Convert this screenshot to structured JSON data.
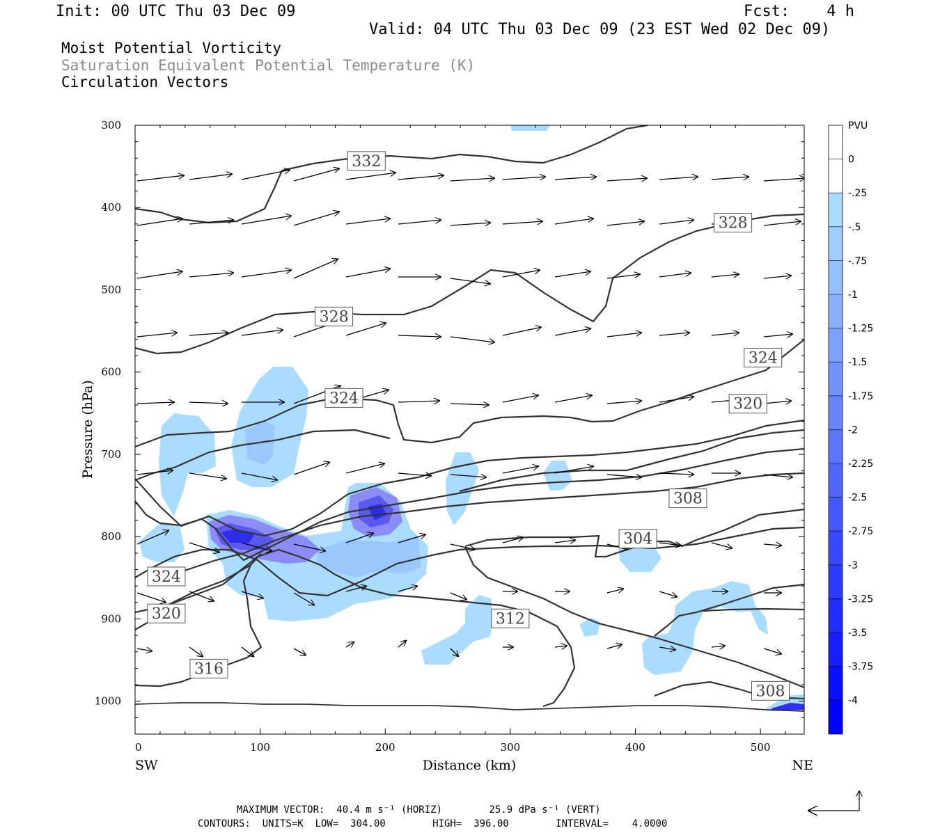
{
  "header": {
    "init": "Init: 00 UTC Thu 03 Dec 09",
    "fcst": "Fcst:    4 h",
    "valid": "Valid: 04 UTC Thu 03 Dec 09 (23 EST Wed 02 Dec 09)",
    "fields": [
      "Moist Potential Vorticity",
      "Saturation Equivalent Potential Temperature (K)",
      "Circulation Vectors"
    ]
  },
  "footer": {
    "line1": "MAXIMUM VECTOR:  40.4 m s⁻¹ (HORIZ)        25.9 dPa s⁻¹ (VERT)",
    "line2": "CONTOURS:  UNITS=K  LOW=  304.00        HIGH=  396.00        INTERVAL=    4.0000"
  },
  "colors": {
    "contour": "#333333",
    "pv_light": "#aadcff",
    "pv_dark": "#2e2eea",
    "axis": "#000000"
  },
  "chart_data": {
    "type": "contour",
    "xlabel": "Distance (km)",
    "ylabel": "Pressure (hPa)",
    "x_ticks": [
      "0",
      "100",
      "200",
      "300",
      "400",
      "500"
    ],
    "y_ticks": [
      "300",
      "400",
      "500",
      "600",
      "700",
      "800",
      "900",
      "1000"
    ],
    "x_end_labels": {
      "left": "SW",
      "right": "NE"
    },
    "xlim": [
      0,
      535
    ],
    "ylim": [
      1040,
      300
    ],
    "contour_labels": [
      {
        "text": "332",
        "x": 185,
        "p": 343
      },
      {
        "text": "328",
        "x": 478,
        "p": 418
      },
      {
        "text": "328",
        "x": 159,
        "p": 532
      },
      {
        "text": "324",
        "x": 502,
        "p": 582
      },
      {
        "text": "324",
        "x": 167,
        "p": 631
      },
      {
        "text": "320",
        "x": 490,
        "p": 638
      },
      {
        "text": "308",
        "x": 442,
        "p": 753
      },
      {
        "text": "304",
        "x": 402,
        "p": 802
      },
      {
        "text": "324",
        "x": 25,
        "p": 848
      },
      {
        "text": "320",
        "x": 25,
        "p": 893
      },
      {
        "text": "312",
        "x": 300,
        "p": 899
      },
      {
        "text": "316",
        "x": 59,
        "p": 960
      },
      {
        "text": "308",
        "x": 508,
        "p": 987
      }
    ],
    "colorbar": {
      "units": "PVU",
      "levels": [
        "0",
        "-.25",
        "-.5",
        "-.75",
        "-1",
        "-1.25",
        "-1.5",
        "-1.75",
        "-2",
        "-2.25",
        "-2.5",
        "-2.75",
        "-3",
        "-3.25",
        "-3.5",
        "-3.75",
        "-4"
      ]
    }
  }
}
